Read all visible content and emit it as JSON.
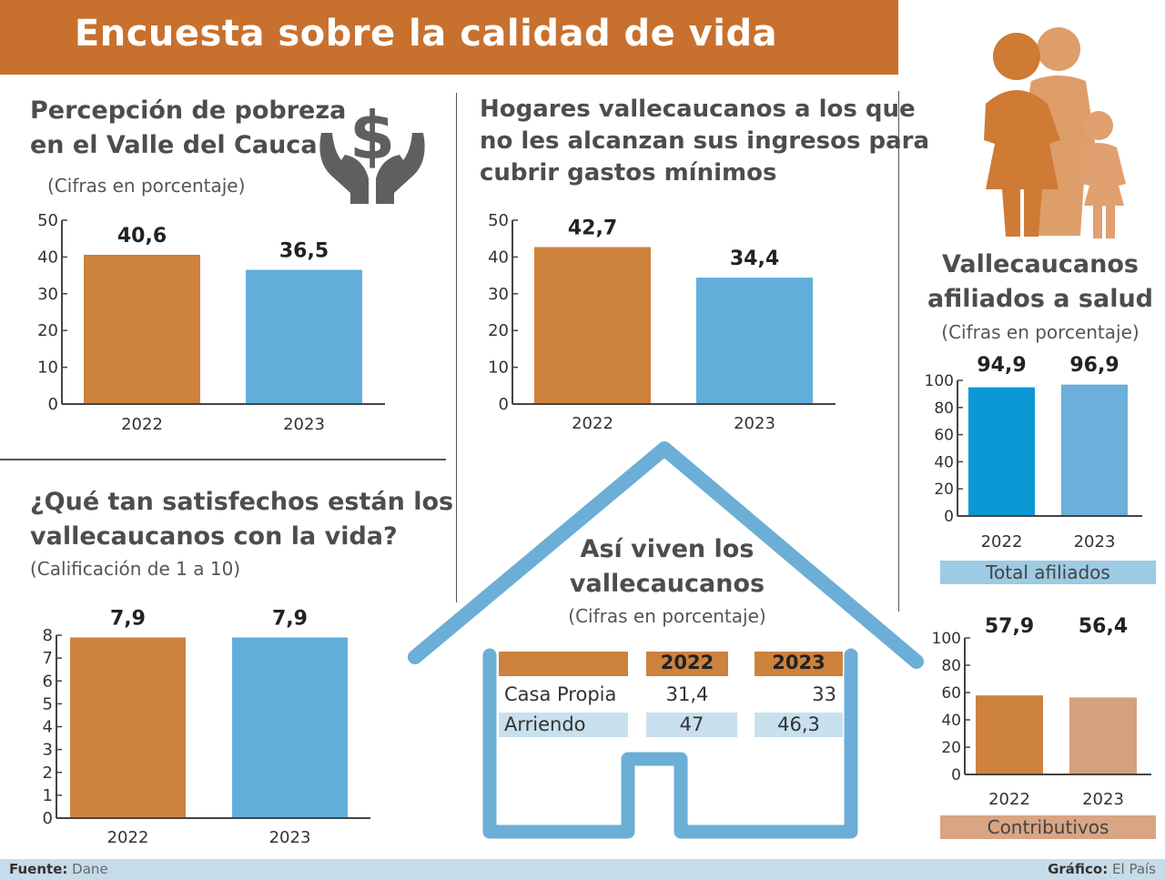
{
  "title": "Encuesta sobre la calidad de vida",
  "colors": {
    "header": "#c8702e",
    "orange": "#cd823d",
    "blue": "#62aedb",
    "house": "#6baed6",
    "dark_blue": "#0b98d4",
    "tan": "#d4a07d"
  },
  "icons": {
    "poverty": "hands-holding-dollar-icon",
    "family": "family-icon",
    "house": "house-outline-icon"
  },
  "chart_data": [
    {
      "type": "bar",
      "title": "Percepción de pobreza en el Valle del Cauca",
      "title_lines": [
        "Percepción de pobreza",
        "en el Valle del Cauca"
      ],
      "subtitle": "(Cifras en porcentaje)",
      "categories": [
        "2022",
        "2023"
      ],
      "values": [
        40.6,
        36.5
      ],
      "labels": [
        "40,6",
        "36,5"
      ],
      "ylim": [
        0,
        50
      ],
      "yticks": [
        0,
        10,
        20,
        30,
        40,
        50
      ],
      "colors": [
        "#cd823d",
        "#62aedb"
      ],
      "grid": false
    },
    {
      "type": "bar",
      "title": "Hogares vallecaucanos a los que no les alcanzan sus ingresos para cubrir gastos mínimos",
      "title_lines": [
        "Hogares vallecaucanos a los que",
        "no les alcanzan sus ingresos para",
        "cubrir gastos mínimos"
      ],
      "subtitle": "",
      "categories": [
        "2022",
        "2023"
      ],
      "values": [
        42.7,
        34.4
      ],
      "labels": [
        "42,7",
        "34,4"
      ],
      "ylim": [
        0,
        50
      ],
      "yticks": [
        0,
        10,
        20,
        30,
        40,
        50
      ],
      "colors": [
        "#cd823d",
        "#62aedb"
      ],
      "grid": false
    },
    {
      "type": "bar",
      "title": "¿Qué tan satisfechos están los vallecaucanos con la vida?",
      "title_lines": [
        "¿Qué tan satisfechos están los",
        "vallecaucanos con la vida?"
      ],
      "subtitle": "(Calificación de 1 a 10)",
      "categories": [
        "2022",
        "2023"
      ],
      "values": [
        7.9,
        7.9
      ],
      "labels": [
        "7,9",
        "7,9"
      ],
      "ylim": [
        0,
        8
      ],
      "yticks": [
        0,
        1,
        2,
        3,
        4,
        5,
        6,
        7,
        8
      ],
      "colors": [
        "#cd823d",
        "#62aedb"
      ],
      "grid": false
    },
    {
      "type": "bar",
      "title": "Vallecaucanos afiliados a salud",
      "title_lines": [
        "Vallecaucanos",
        "afiliados a salud"
      ],
      "subtitle": "(Cifras en porcentaje)",
      "xlabel": "Total afiliados",
      "categories": [
        "2022",
        "2023"
      ],
      "values": [
        94.9,
        96.9
      ],
      "labels": [
        "94,9",
        "96,9"
      ],
      "ylim": [
        0,
        100
      ],
      "yticks": [
        0,
        20,
        40,
        60,
        80,
        100
      ],
      "colors": [
        "#0b98d4",
        "#6ab0da"
      ],
      "grid": false
    },
    {
      "type": "bar",
      "title": "",
      "xlabel": "Contributivos",
      "categories": [
        "2022",
        "2023"
      ],
      "values": [
        57.9,
        56.4
      ],
      "labels": [
        "57,9",
        "56,4"
      ],
      "ylim": [
        0,
        100
      ],
      "yticks": [
        0,
        20,
        40,
        60,
        80,
        100
      ],
      "colors": [
        "#cd823d",
        "#d4a07d"
      ],
      "grid": false
    },
    {
      "type": "table",
      "title": "Así viven los vallecaucanos",
      "title_lines": [
        "Así viven los",
        "vallecaucanos"
      ],
      "subtitle": "(Cifras en porcentaje)",
      "columns": [
        "",
        "2022",
        "2023"
      ],
      "rows": [
        [
          "Casa Propia",
          "31,4",
          "33"
        ],
        [
          "Arriendo",
          "47",
          "46,3"
        ]
      ]
    }
  ],
  "footer": {
    "source_label": "Fuente:",
    "source": "Dane",
    "credit_label": "Gráfico:",
    "credit": "El País"
  }
}
